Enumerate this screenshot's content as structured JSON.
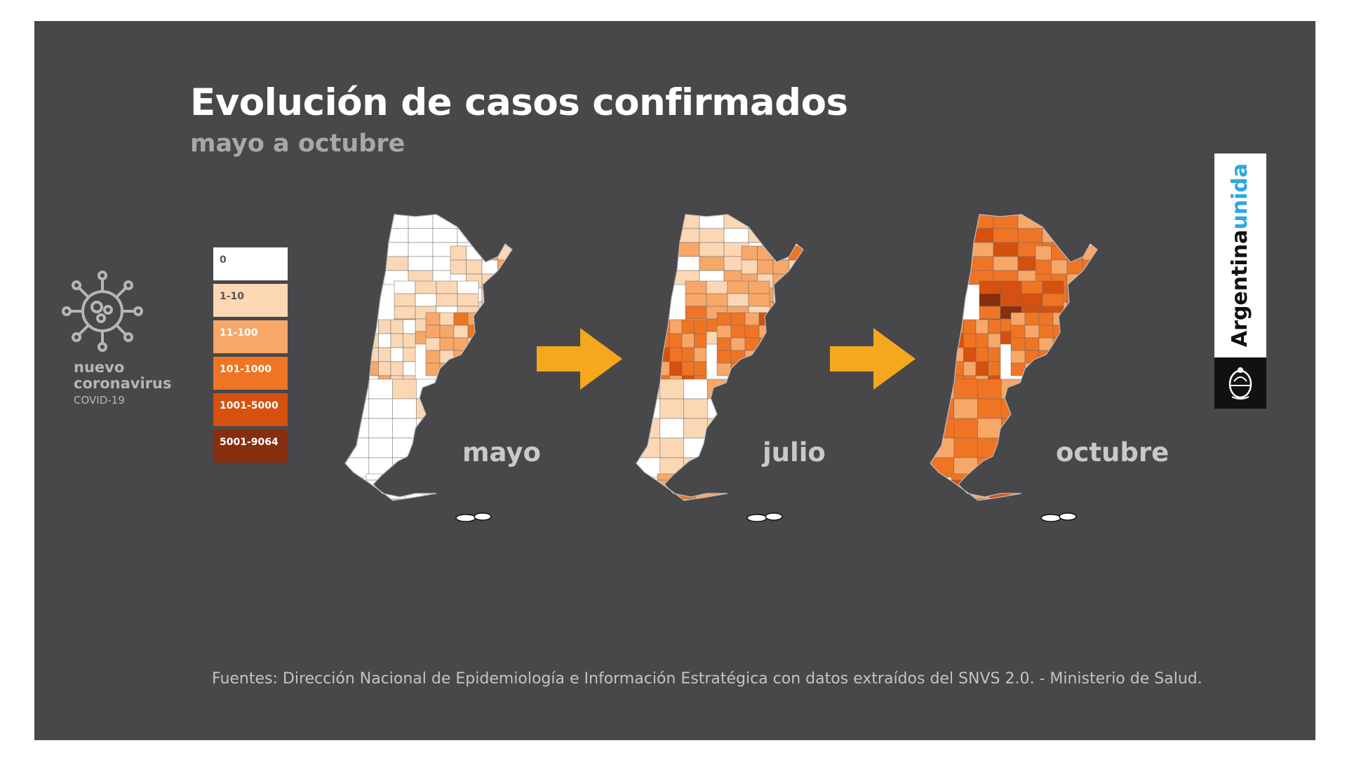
{
  "header": {
    "title": "Evolución de casos confirmados",
    "subtitle": "mayo a octubre"
  },
  "branding": {
    "line1": "nuevo",
    "line2": "coronavirus",
    "line3": "COVID-19",
    "logo_word1": "Argentina",
    "logo_word2": "unida",
    "icon": "virus-icon",
    "seal_icon": "argentina-seal-icon"
  },
  "legend": [
    {
      "label": "0",
      "color": "#ffffff",
      "text_color": "#555555"
    },
    {
      "label": "1-10",
      "color": "#fbd7b4",
      "text_color": "#555555"
    },
    {
      "label": "11-100",
      "color": "#f7a767",
      "text_color": "#ffffff"
    },
    {
      "label": "101-1000",
      "color": "#ef7424",
      "text_color": "#ffffff"
    },
    {
      "label": "1001-5000",
      "color": "#d6500f",
      "text_color": "#ffffff"
    },
    {
      "label": "5001-9064",
      "color": "#862e0d",
      "text_color": "#ffffff"
    }
  ],
  "maps": [
    {
      "label": "mayo",
      "levels": {
        "north": 0,
        "northeast": 1,
        "center": 1,
        "buenos_aires": 2,
        "cuyo": 1,
        "patagonia": 0,
        "tierra_del_fuego": 0
      }
    },
    {
      "label": "julio",
      "levels": {
        "north": 1,
        "northeast": 2,
        "center": 2,
        "buenos_aires": 3,
        "cuyo": 3,
        "patagonia": 1,
        "tierra_del_fuego": 2
      }
    },
    {
      "label": "octubre",
      "levels": {
        "north": 3,
        "northeast": 3,
        "center": 4,
        "buenos_aires": 3,
        "cuyo": 3,
        "patagonia": 3,
        "tierra_del_fuego": 3
      }
    }
  ],
  "arrow_color": "#f5a81c",
  "source": "Fuentes: Dirección Nacional de Epidemiología e Información Estratégica con datos extraídos del SNVS 2.0. - Ministerio de Salud."
}
